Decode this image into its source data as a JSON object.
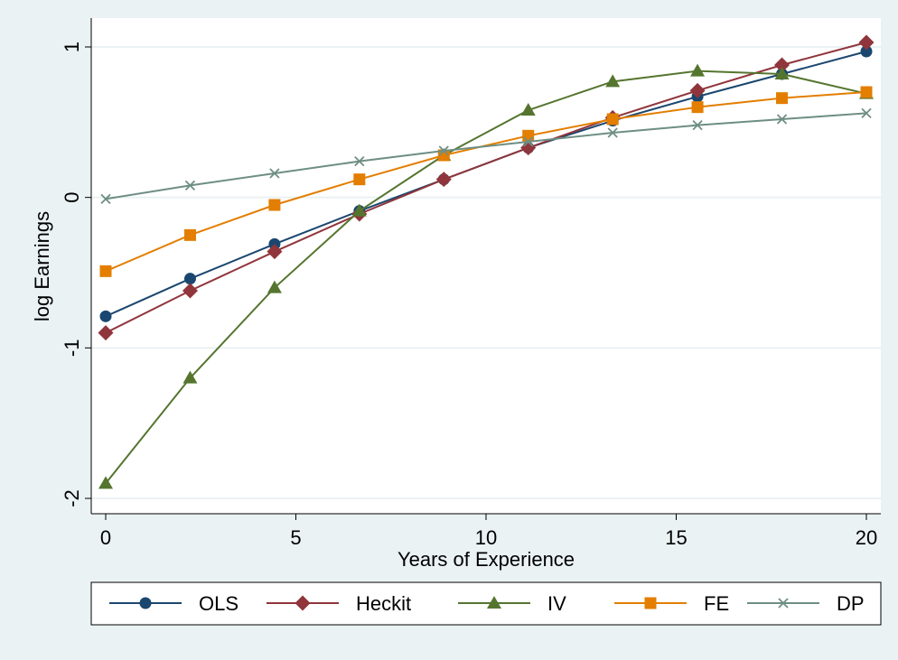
{
  "chart_data": {
    "type": "line",
    "title": "",
    "xlabel": "Years of Experience",
    "ylabel": "log Earnings",
    "xlim": [
      0,
      20
    ],
    "ylim": [
      -2.1,
      1.1
    ],
    "xticks": [
      0,
      5,
      10,
      15,
      20
    ],
    "yticks": [
      -2,
      -1,
      0,
      1
    ],
    "xtick_labels": [
      "0",
      "5",
      "10",
      "15",
      "20"
    ],
    "ytick_labels": [
      "-2",
      "-1",
      "0",
      "1"
    ],
    "grid": "horizontal",
    "legend_position": "bottom",
    "x": [
      0,
      2.22,
      4.44,
      6.67,
      8.89,
      11.11,
      13.33,
      15.56,
      17.78,
      20
    ],
    "series": [
      {
        "name": "OLS",
        "color": "#1a476f",
        "marker": "circle",
        "values": [
          -0.79,
          -0.54,
          -0.31,
          -0.09,
          0.12,
          0.33,
          0.51,
          0.67,
          0.82,
          0.97
        ]
      },
      {
        "name": "Heckit",
        "color": "#90353b",
        "marker": "diamond",
        "values": [
          -0.9,
          -0.62,
          -0.36,
          -0.11,
          0.12,
          0.33,
          0.53,
          0.71,
          0.88,
          1.03
        ]
      },
      {
        "name": "IV",
        "color": "#55752f",
        "marker": "triangle",
        "values": [
          -1.9,
          -1.2,
          -0.6,
          -0.09,
          0.28,
          0.58,
          0.77,
          0.84,
          0.82,
          0.69
        ]
      },
      {
        "name": "FE",
        "color": "#e37e00",
        "marker": "square",
        "values": [
          -0.49,
          -0.25,
          -0.05,
          0.12,
          0.28,
          0.41,
          0.52,
          0.6,
          0.66,
          0.7
        ]
      },
      {
        "name": "DP",
        "color": "#6e8e84",
        "marker": "x",
        "values": [
          -0.01,
          0.08,
          0.16,
          0.24,
          0.31,
          0.37,
          0.43,
          0.48,
          0.52,
          0.56
        ]
      }
    ]
  }
}
